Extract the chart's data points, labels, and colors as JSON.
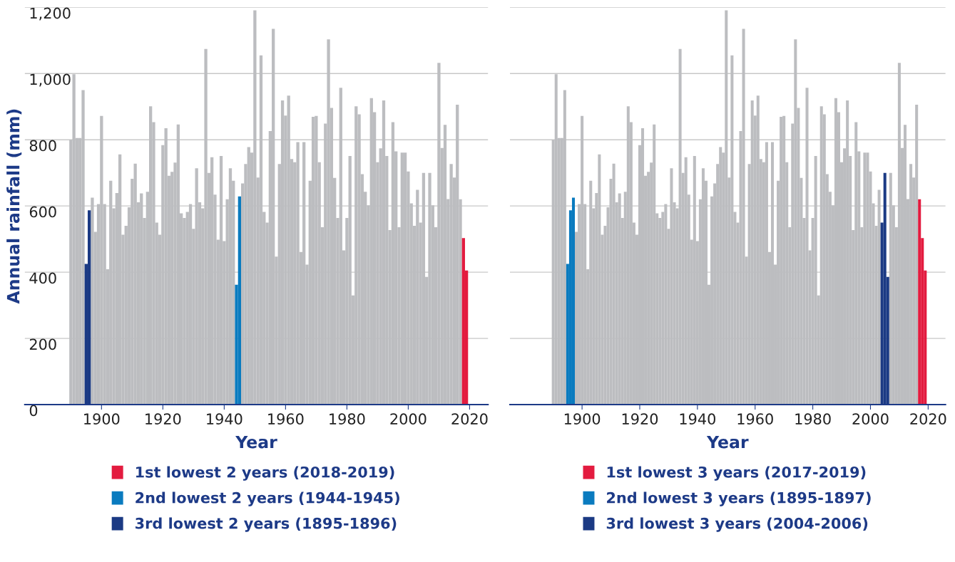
{
  "chart_data": [
    {
      "type": "bar",
      "xlabel": "Year",
      "ylabel": "Annual rainfall (mm)",
      "xlim": [
        1875,
        2026
      ],
      "xticks": [
        1900,
        1920,
        1940,
        1960,
        1980,
        2000,
        2020
      ],
      "ylim": [
        0,
        1200
      ],
      "yticks": [
        {
          "value": 0,
          "label": "0"
        },
        {
          "value": 200,
          "label": "200"
        },
        {
          "value": 400,
          "label": "400"
        },
        {
          "value": 600,
          "label": "600"
        },
        {
          "value": 800,
          "label": "800"
        },
        {
          "value": 1000,
          "label": "1,000"
        },
        {
          "value": 1200,
          "label": "1,200"
        }
      ],
      "grid": "y",
      "legend": "bottom",
      "x": [
        1890,
        1891,
        1892,
        1893,
        1894,
        1895,
        1896,
        1897,
        1898,
        1899,
        1900,
        1901,
        1902,
        1903,
        1904,
        1905,
        1906,
        1907,
        1908,
        1909,
        1910,
        1911,
        1912,
        1913,
        1914,
        1915,
        1916,
        1917,
        1918,
        1919,
        1920,
        1921,
        1922,
        1923,
        1924,
        1925,
        1926,
        1927,
        1928,
        1929,
        1930,
        1931,
        1932,
        1933,
        1934,
        1935,
        1936,
        1937,
        1938,
        1939,
        1940,
        1941,
        1942,
        1943,
        1944,
        1945,
        1946,
        1947,
        1948,
        1949,
        1950,
        1951,
        1952,
        1953,
        1954,
        1955,
        1956,
        1957,
        1958,
        1959,
        1960,
        1961,
        1962,
        1963,
        1964,
        1965,
        1966,
        1967,
        1968,
        1969,
        1970,
        1971,
        1972,
        1973,
        1974,
        1975,
        1976,
        1977,
        1978,
        1979,
        1980,
        1981,
        1982,
        1983,
        1984,
        1985,
        1986,
        1987,
        1988,
        1989,
        1990,
        1991,
        1992,
        1993,
        1994,
        1995,
        1996,
        1997,
        1998,
        1999,
        2000,
        2001,
        2002,
        2003,
        2004,
        2005,
        2006,
        2007,
        2008,
        2009,
        2010,
        2011,
        2012,
        2013,
        2014,
        2015,
        2016,
        2017
      ],
      "series": [
        {
          "color": "#bcbdc0",
          "values": [
            800,
            998,
            805,
            805,
            950,
            null,
            null,
            625,
            522,
            606,
            872,
            606,
            409,
            676,
            593,
            639,
            756,
            513,
            540,
            596,
            682,
            728,
            611,
            638,
            564,
            643,
            901,
            853,
            550,
            513,
            784,
            835,
            691,
            703,
            731,
            846,
            578,
            564,
            582,
            606,
            531,
            714,
            611,
            593,
            1074,
            700,
            747,
            634,
            498,
            751,
            494,
            620,
            714,
            676,
            null,
            null,
            668,
            727,
            778,
            761,
            1191,
            686,
            1055,
            582,
            550,
            826,
            1135,
            447,
            727,
            919,
            873,
            933,
            742,
            732,
            793,
            461,
            793,
            423,
            676,
            869,
            872,
            732,
            536,
            849,
            1103,
            896,
            685,
            564,
            957,
            466,
            564,
            751,
            330,
            901,
            877,
            696,
            643,
            602,
            926,
            883,
            732,
            774,
            919,
            751,
            527,
            853,
            765,
            536,
            761,
            761,
            704,
            608,
            540,
            649,
            550,
            700,
            386,
            700,
            602,
            536,
            1032,
            775,
            845,
            621,
            727,
            686,
            906,
            620
          ]
        },
        {
          "name": "1st lowest 2 years (2018-2019)",
          "color": "#e31b3f",
          "x": [
            2018,
            2019
          ],
          "values": [
            503,
            405
          ]
        },
        {
          "name": "2nd lowest 2 years (1944-1945)",
          "color": "#0a7bbf",
          "x": [
            1944,
            1945
          ],
          "values": [
            362,
            629
          ]
        },
        {
          "name": "3rd lowest 2 years (1895-1896)",
          "color": "#1b3a84",
          "x": [
            1895,
            1896
          ],
          "values": [
            425,
            587
          ]
        }
      ]
    },
    {
      "type": "bar",
      "xlabel": "Year",
      "xlim": [
        1875,
        2026
      ],
      "xticks": [
        1900,
        1920,
        1940,
        1960,
        1980,
        2000,
        2020
      ],
      "ylim": [
        0,
        1200
      ],
      "yticks": [
        0,
        200,
        400,
        600,
        800,
        1000,
        1200
      ],
      "grid": "y",
      "legend": "bottom",
      "tick_labels": "x",
      "x": [
        1890,
        1891,
        1892,
        1893,
        1894,
        1895,
        1896,
        1897,
        1898,
        1899,
        1900,
        1901,
        1902,
        1903,
        1904,
        1905,
        1906,
        1907,
        1908,
        1909,
        1910,
        1911,
        1912,
        1913,
        1914,
        1915,
        1916,
        1917,
        1918,
        1919,
        1920,
        1921,
        1922,
        1923,
        1924,
        1925,
        1926,
        1927,
        1928,
        1929,
        1930,
        1931,
        1932,
        1933,
        1934,
        1935,
        1936,
        1937,
        1938,
        1939,
        1940,
        1941,
        1942,
        1943,
        1944,
        1945,
        1946,
        1947,
        1948,
        1949,
        1950,
        1951,
        1952,
        1953,
        1954,
        1955,
        1956,
        1957,
        1958,
        1959,
        1960,
        1961,
        1962,
        1963,
        1964,
        1965,
        1966,
        1967,
        1968,
        1969,
        1970,
        1971,
        1972,
        1973,
        1974,
        1975,
        1976,
        1977,
        1978,
        1979,
        1980,
        1981,
        1982,
        1983,
        1984,
        1985,
        1986,
        1987,
        1988,
        1989,
        1990,
        1991,
        1992,
        1993,
        1994,
        1995,
        1996,
        1997,
        1998,
        1999,
        2000,
        2001,
        2002,
        2003,
        2004,
        2005,
        2006,
        2007,
        2008,
        2009,
        2010,
        2011,
        2012,
        2013,
        2014,
        2015,
        2016
      ],
      "series": [
        {
          "color": "#bcbdc0",
          "values": [
            800,
            998,
            805,
            805,
            950,
            null,
            null,
            null,
            522,
            606,
            872,
            606,
            409,
            676,
            593,
            639,
            756,
            513,
            540,
            596,
            682,
            728,
            611,
            638,
            564,
            643,
            901,
            853,
            550,
            513,
            784,
            835,
            691,
            703,
            731,
            846,
            578,
            564,
            582,
            606,
            531,
            714,
            611,
            593,
            1074,
            700,
            747,
            634,
            498,
            751,
            494,
            620,
            714,
            676,
            362,
            629,
            668,
            727,
            778,
            761,
            1191,
            686,
            1055,
            582,
            550,
            826,
            1135,
            447,
            727,
            919,
            873,
            933,
            742,
            732,
            793,
            461,
            793,
            423,
            676,
            869,
            872,
            732,
            536,
            849,
            1103,
            896,
            685,
            564,
            957,
            466,
            564,
            751,
            330,
            901,
            877,
            696,
            643,
            602,
            926,
            883,
            732,
            774,
            919,
            751,
            527,
            853,
            765,
            536,
            761,
            761,
            704,
            608,
            540,
            649,
            null,
            null,
            null,
            700,
            602,
            536,
            1032,
            775,
            845,
            621,
            727,
            686,
            906
          ]
        },
        {
          "name": "1st lowest 3 years (2017-2019)",
          "color": "#e31b3f",
          "x": [
            2017,
            2018,
            2019
          ],
          "values": [
            620,
            503,
            405
          ]
        },
        {
          "name": "2nd lowest 3 years (1895-1897)",
          "color": "#0a7bbf",
          "x": [
            1895,
            1896,
            1897
          ],
          "values": [
            425,
            587,
            625
          ]
        },
        {
          "name": "3rd lowest 3 years (2004-2006)",
          "color": "#1b3a84",
          "x": [
            2004,
            2005,
            2006
          ],
          "values": [
            550,
            700,
            386
          ]
        }
      ]
    }
  ]
}
